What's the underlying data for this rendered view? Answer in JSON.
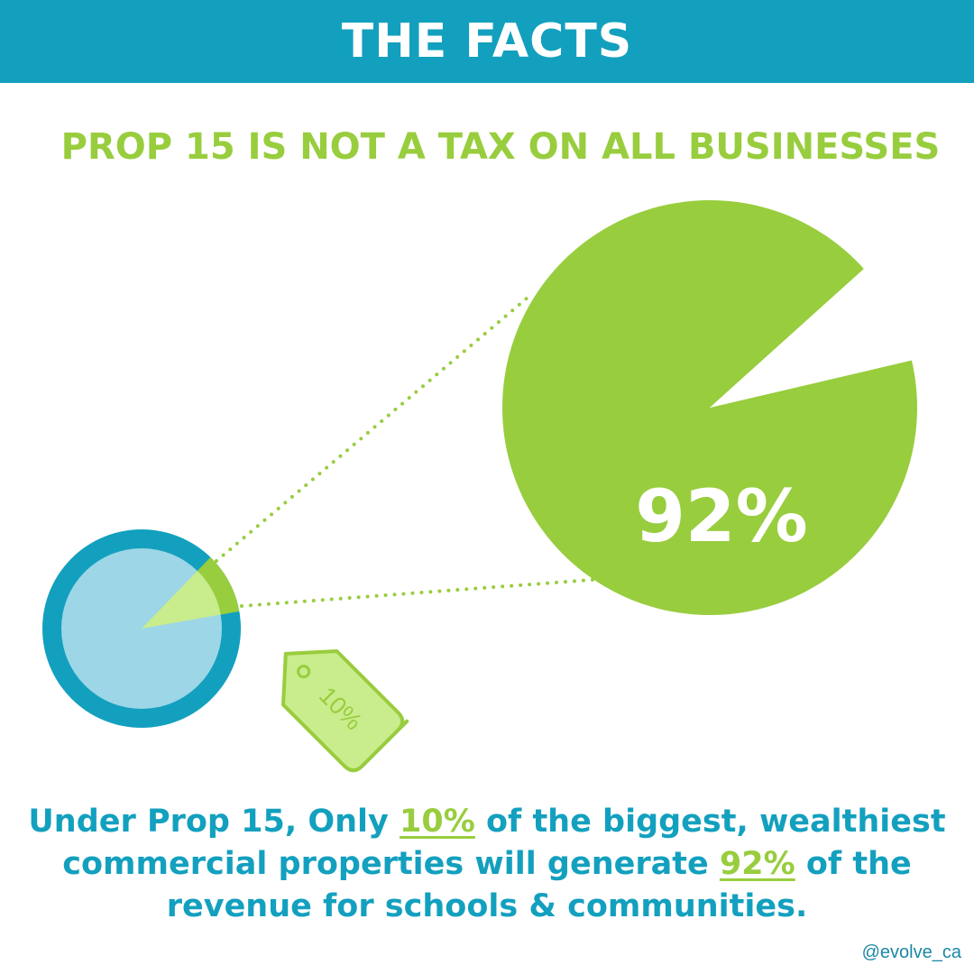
{
  "header": {
    "title": "THE FACTS"
  },
  "headline": "PROP 15 IS NOT A TAX ON ALL BUSINESSES",
  "colors": {
    "teal": "#13a0bf",
    "light_blue": "#9dd6e6",
    "green": "#98cd3e",
    "light_green": "#c9ec8c"
  },
  "chart_data": [
    {
      "type": "pie",
      "description_role": "commercial properties",
      "slices": [
        {
          "label": "10%",
          "value": 10
        },
        {
          "label": "",
          "value": 90
        }
      ]
    },
    {
      "type": "pie",
      "description_role": "revenue",
      "slices": [
        {
          "label": "92%",
          "value": 92
        },
        {
          "label": "",
          "value": 8
        }
      ]
    }
  ],
  "tag_label": "10%",
  "big_pie_label": "92%",
  "caption": {
    "p1": "Under Prop 15, Only ",
    "h1": "10%",
    "p2": " of the biggest, wealthiest commercial properties will generate ",
    "h2": "92%",
    "p3": " of the revenue for schools & communities."
  },
  "handle": "@evolve_ca"
}
